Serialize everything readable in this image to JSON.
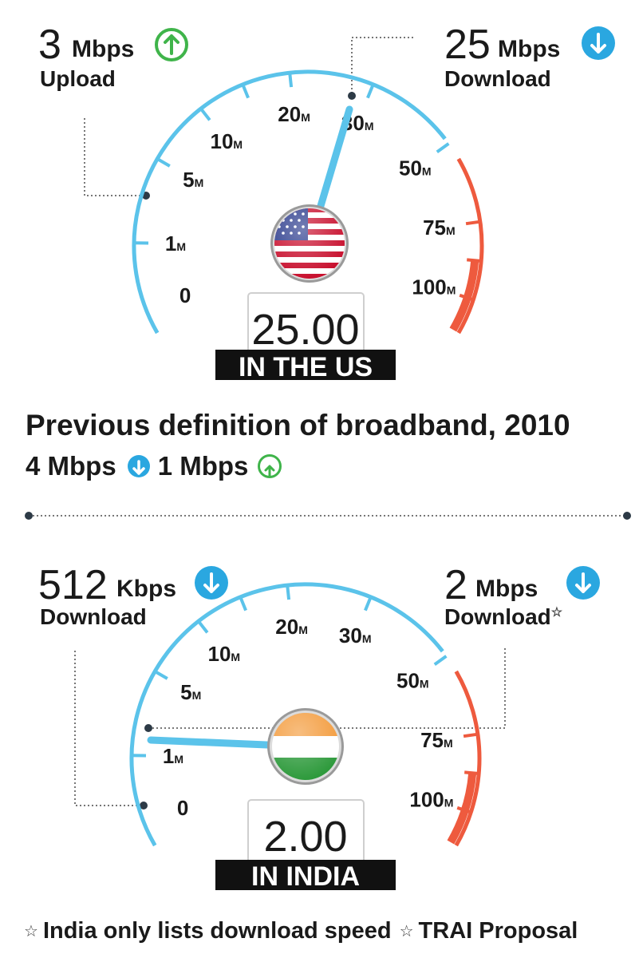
{
  "us": {
    "upload_value": "3",
    "upload_unit": "Mbps",
    "upload_label": "Upload",
    "download_value": "25",
    "download_unit": "Mbps",
    "download_label": "Download",
    "readout": "25.00",
    "banner": "IN THE US",
    "needle_mbps": 25
  },
  "previous_definition": {
    "title": "Previous definition of broadband, 2010",
    "download": "4 Mbps",
    "upload": "1 Mbps"
  },
  "india": {
    "left_value": "512",
    "left_unit": "Kbps",
    "left_label": "Download",
    "right_value": "2",
    "right_unit": "Mbps",
    "right_label": "Download",
    "readout": "2.00",
    "banner": "IN INDIA",
    "needle_mbps": 2
  },
  "gauge": {
    "ticks": [
      {
        "value": "0",
        "unit": ""
      },
      {
        "value": "1",
        "unit": "M"
      },
      {
        "value": "5",
        "unit": "M"
      },
      {
        "value": "10",
        "unit": "M"
      },
      {
        "value": "20",
        "unit": "M"
      },
      {
        "value": "30",
        "unit": "M"
      },
      {
        "value": "50",
        "unit": "M"
      },
      {
        "value": "75",
        "unit": "M"
      },
      {
        "value": "100",
        "unit": "M"
      }
    ],
    "colors": {
      "blue": "#5bc3ea",
      "red": "#ee5a3e",
      "green": "#3fb44a",
      "dark": "#1a1a1a"
    }
  },
  "footnote": {
    "left": "India only lists download speed",
    "right": "TRAI Proposal"
  }
}
